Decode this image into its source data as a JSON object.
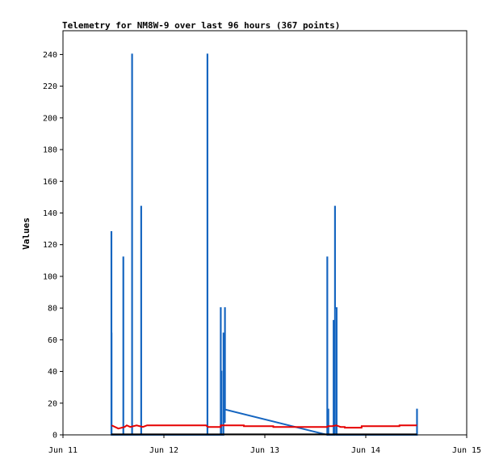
{
  "colors": {
    "background": "#ffffff",
    "plot_border": "#000000",
    "series_blue": "#1565c0",
    "series_red": "#e60000",
    "series_black": "#000000"
  },
  "chart_data": {
    "type": "line",
    "title": "Telemetry for NM8W-9 over last 96 hours (367 points)",
    "xlabel": "",
    "ylabel": "Values",
    "xlim": [
      "Jun 11",
      "Jun 15"
    ],
    "ylim": [
      0,
      255
    ],
    "x_ticks": [
      "Jun 11",
      "Jun 12",
      "Jun 13",
      "Jun 14",
      "Jun 15"
    ],
    "y_ticks": [
      0,
      20,
      40,
      60,
      80,
      100,
      120,
      140,
      160,
      180,
      200,
      220,
      240
    ],
    "grid": false,
    "legend": "none",
    "series": [
      {
        "color": "#1565c0",
        "points": [
          [
            "Jun 11 11:30",
            0
          ],
          [
            "Jun 11 11:30",
            128
          ],
          [
            "Jun 11 11:32",
            128
          ],
          [
            "Jun 11 11:32",
            64
          ],
          [
            "Jun 11 11:34",
            64
          ],
          [
            "Jun 11 11:34",
            0
          ],
          [
            "Jun 11 14:20",
            0
          ],
          [
            "Jun 11 14:20",
            112
          ],
          [
            "Jun 11 14:22",
            112
          ],
          [
            "Jun 11 14:22",
            0
          ],
          [
            "Jun 11 16:25",
            0
          ],
          [
            "Jun 11 16:25",
            240
          ],
          [
            "Jun 11 16:27",
            240
          ],
          [
            "Jun 11 16:27",
            0
          ],
          [
            "Jun 11 18:35",
            0
          ],
          [
            "Jun 11 18:35",
            144
          ],
          [
            "Jun 11 18:37",
            144
          ],
          [
            "Jun 11 18:37",
            0
          ],
          [
            "Jun 12 10:20",
            0
          ],
          [
            "Jun 12 10:20",
            240
          ],
          [
            "Jun 12 10:22",
            240
          ],
          [
            "Jun 12 10:22",
            0
          ],
          [
            "Jun 12 13:30",
            0
          ],
          [
            "Jun 12 13:30",
            80
          ],
          [
            "Jun 12 13:32",
            80
          ],
          [
            "Jun 12 13:32",
            8
          ],
          [
            "Jun 12 13:40",
            8
          ],
          [
            "Jun 12 13:40",
            40
          ],
          [
            "Jun 12 13:42",
            40
          ],
          [
            "Jun 12 13:42",
            0
          ],
          [
            "Jun 12 14:10",
            0
          ],
          [
            "Jun 12 14:10",
            64
          ],
          [
            "Jun 12 14:12",
            64
          ],
          [
            "Jun 12 14:12",
            8
          ],
          [
            "Jun 12 14:30",
            8
          ],
          [
            "Jun 12 14:30",
            80
          ],
          [
            "Jun 12 14:32",
            80
          ],
          [
            "Jun 12 14:32",
            16
          ],
          [
            "Jun 13 14:50",
            0
          ],
          [
            "Jun 13 14:50",
            112
          ],
          [
            "Jun 13 14:52",
            112
          ],
          [
            "Jun 13 14:52",
            0
          ],
          [
            "Jun 13 15:05",
            0
          ],
          [
            "Jun 13 15:05",
            16
          ],
          [
            "Jun 13 15:07",
            16
          ],
          [
            "Jun 13 15:07",
            0
          ],
          [
            "Jun 13 16:20",
            0
          ],
          [
            "Jun 13 16:20",
            72
          ],
          [
            "Jun 13 16:22",
            72
          ],
          [
            "Jun 13 16:22",
            0
          ],
          [
            "Jun 13 16:40",
            0
          ],
          [
            "Jun 13 16:40",
            144
          ],
          [
            "Jun 13 16:42",
            144
          ],
          [
            "Jun 13 16:42",
            80
          ],
          [
            "Jun 13 16:55",
            80
          ],
          [
            "Jun 13 16:55",
            80
          ],
          [
            "Jun 13 17:05",
            80
          ],
          [
            "Jun 13 17:05",
            0
          ],
          [
            "Jun 14 12:10",
            0
          ],
          [
            "Jun 14 12:10",
            16
          ],
          [
            "Jun 14 12:12",
            16
          ],
          [
            "Jun 14 12:12",
            0
          ]
        ]
      },
      {
        "color": "#e60000",
        "points": [
          [
            "Jun 11 11:35",
            6
          ],
          [
            "Jun 11 13:10",
            4
          ],
          [
            "Jun 11 14:40",
            5
          ],
          [
            "Jun 11 15:10",
            6
          ],
          [
            "Jun 11 16:00",
            5
          ],
          [
            "Jun 11 17:30",
            6
          ],
          [
            "Jun 11 19:00",
            5
          ],
          [
            "Jun 11 20:00",
            6
          ],
          [
            "Jun 12 10:00",
            6
          ],
          [
            "Jun 12 10:30",
            5
          ],
          [
            "Jun 12 13:30",
            5
          ],
          [
            "Jun 12 13:31",
            6
          ],
          [
            "Jun 12 19:00",
            6
          ],
          [
            "Jun 12 19:01",
            5.5
          ],
          [
            "Jun 13 02:00",
            5.5
          ],
          [
            "Jun 13 02:01",
            5
          ],
          [
            "Jun 13 14:50",
            5
          ],
          [
            "Jun 13 15:00",
            5.5
          ],
          [
            "Jun 13 16:00",
            5.5
          ],
          [
            "Jun 13 17:00",
            6
          ],
          [
            "Jun 13 18:00",
            5
          ],
          [
            "Jun 13 19:00",
            5
          ],
          [
            "Jun 13 19:01",
            4.5
          ],
          [
            "Jun 13 23:00",
            4.5
          ],
          [
            "Jun 13 23:01",
            5.5
          ],
          [
            "Jun 14 08:00",
            5.5
          ],
          [
            "Jun 14 08:01",
            6
          ],
          [
            "Jun 14 12:10",
            6
          ]
        ]
      },
      {
        "color": "#000000",
        "points": [
          [
            "Jun 11 11:30",
            0.3
          ],
          [
            "Jun 14 12:10",
            0.3
          ]
        ]
      }
    ]
  }
}
